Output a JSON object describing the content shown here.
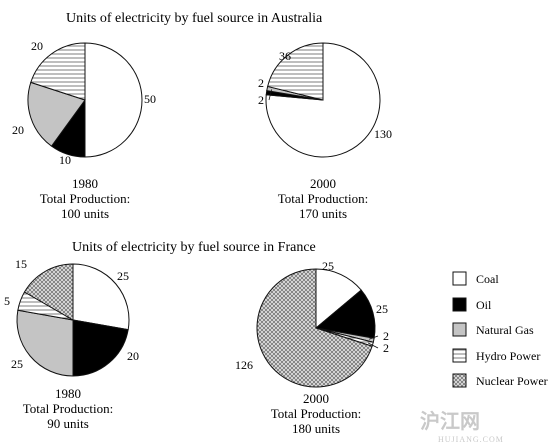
{
  "titles": {
    "australia": "Units of electricity by fuel source in Australia",
    "france": "Units of electricity by fuel source in France"
  },
  "legend": [
    {
      "key": "coal",
      "label": "Coal"
    },
    {
      "key": "oil",
      "label": "Oil"
    },
    {
      "key": "gas",
      "label": "Natural Gas"
    },
    {
      "key": "hydro",
      "label": "Hydro Power"
    },
    {
      "key": "nuclear",
      "label": "Nuclear Power"
    }
  ],
  "watermark": {
    "text": "沪江网",
    "sub": "HUJIANG.COM"
  },
  "chart_data": [
    {
      "type": "pie",
      "title": "Units of electricity by fuel source in Australia",
      "year": "1980",
      "total_label": "Total Production:",
      "total": "100 units",
      "slices": [
        {
          "key": "coal",
          "value": 50
        },
        {
          "key": "oil",
          "value": 10
        },
        {
          "key": "gas",
          "value": 20
        },
        {
          "key": "hydro",
          "value": 20
        }
      ]
    },
    {
      "type": "pie",
      "title": "Units of electricity by fuel source in Australia",
      "year": "2000",
      "total_label": "Total Production:",
      "total": "170 units",
      "slices": [
        {
          "key": "coal",
          "value": 130
        },
        {
          "key": "oil",
          "value": 2
        },
        {
          "key": "gas",
          "value": 2
        },
        {
          "key": "hydro",
          "value": 36
        }
      ]
    },
    {
      "type": "pie",
      "title": "Units of electricity by fuel source in France",
      "year": "1980",
      "total_label": "Total Production:",
      "total": "90 units",
      "slices": [
        {
          "key": "coal",
          "value": 25
        },
        {
          "key": "oil",
          "value": 20
        },
        {
          "key": "gas",
          "value": 25
        },
        {
          "key": "hydro",
          "value": 5
        },
        {
          "key": "nuclear",
          "value": 15
        }
      ]
    },
    {
      "type": "pie",
      "title": "Units of electricity by fuel source in France",
      "year": "2000",
      "total_label": "Total Production:",
      "total": "180 units",
      "slices": [
        {
          "key": "coal",
          "value": 25
        },
        {
          "key": "oil",
          "value": 25
        },
        {
          "key": "gas",
          "value": 2
        },
        {
          "key": "hydro",
          "value": 2
        },
        {
          "key": "nuclear",
          "value": 126
        }
      ]
    }
  ]
}
